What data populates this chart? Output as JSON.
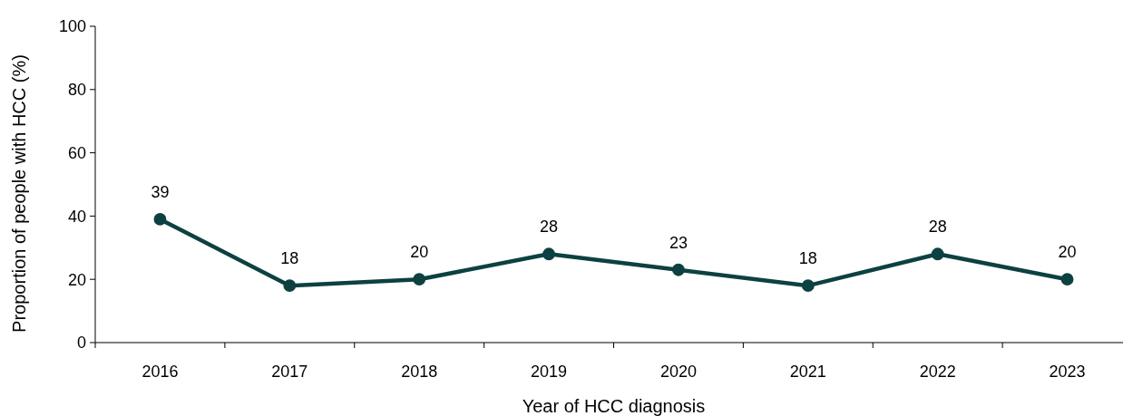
{
  "chart_data": {
    "type": "line",
    "xlabel": "Year of HCC diagnosis",
    "ylabel": "Proportion of people with HCC (%)",
    "categories": [
      "2016",
      "2017",
      "2018",
      "2019",
      "2020",
      "2021",
      "2022",
      "2023"
    ],
    "series": [
      {
        "color": "#0d4141",
        "values": [
          39,
          18,
          20,
          28,
          23,
          18,
          28,
          20
        ]
      }
    ],
    "ylim": [
      0,
      100
    ],
    "yticks": [
      0,
      20,
      40,
      60,
      80,
      100
    ],
    "grid": false,
    "marker": "circle",
    "line_style": "solid",
    "data_labels": true
  }
}
